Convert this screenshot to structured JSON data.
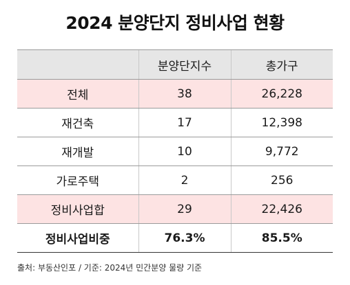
{
  "title": "2024 분양단지 정비사업 현황",
  "table": {
    "headers": [
      "",
      "분양단지수",
      "총가구"
    ],
    "rows": [
      {
        "label": "전체",
        "complexes": "38",
        "households": "26,228",
        "highlight": true
      },
      {
        "label": "재건축",
        "complexes": "17",
        "households": "12,398",
        "highlight": false
      },
      {
        "label": "재개발",
        "complexes": "10",
        "households": "9,772",
        "highlight": false
      },
      {
        "label": "가로주택",
        "complexes": "2",
        "households": "256",
        "highlight": false
      },
      {
        "label": "정비사업합",
        "complexes": "29",
        "households": "22,426",
        "highlight": true
      },
      {
        "label": "정비사업비중",
        "complexes": "76.3%",
        "households": "85.5%",
        "highlight": false
      }
    ]
  },
  "source": "출처: 부동산인포 / 기준: 2024년 민간분양 물량 기준",
  "colors": {
    "header_bg": "#e6e6e6",
    "highlight_bg": "#fde3e3"
  }
}
